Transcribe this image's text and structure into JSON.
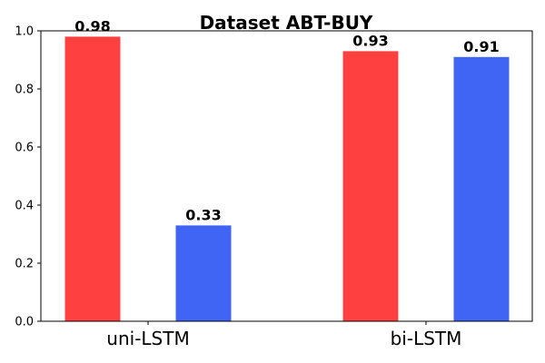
{
  "chart_data": {
    "type": "bar",
    "title": "Dataset ABT-BUY",
    "categories": [
      "uni-LSTM",
      "bi-LSTM"
    ],
    "series": [
      {
        "name": "series-1",
        "color": "#ff4040",
        "values": [
          0.98,
          0.93
        ],
        "labels": [
          "0.98",
          "0.93"
        ]
      },
      {
        "name": "series-2",
        "color": "#4065f5",
        "values": [
          0.33,
          0.91
        ],
        "labels": [
          "0.33",
          "0.91"
        ]
      }
    ],
    "ylim": [
      0.0,
      1.0
    ],
    "yticks": [
      0.0,
      0.2,
      0.4,
      0.6,
      0.8,
      1.0
    ],
    "ytick_labels": [
      "0.0",
      "0.2",
      "0.4",
      "0.6",
      "0.8",
      "1.0"
    ],
    "xlabel": "",
    "ylabel": "",
    "grid": false,
    "legend": false
  }
}
